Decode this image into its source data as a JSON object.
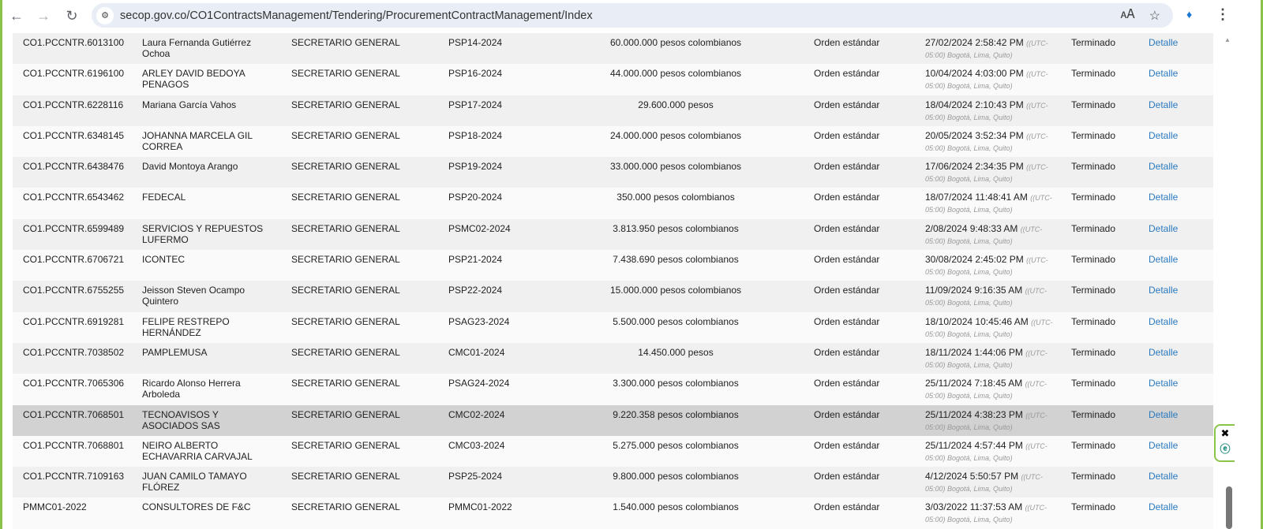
{
  "browser": {
    "url": "secop.gov.co/CO1ContractsManagement/Tendering/ProcurementContractManagement/Index"
  },
  "rows": [
    {
      "id": "CO1.PCCNTR.6013100",
      "name": "Laura Fernanda Gutiérrez Ochoa",
      "dept": "SECRETARIO GENERAL",
      "ref": "PSP14-2024",
      "value": "60.000.000 pesos colombianos",
      "type": "Orden estándar",
      "date": "27/02/2024 2:58:42 PM",
      "tz": "((UTC-05:00) Bogotá, Lima, Quito)",
      "status": "Terminado",
      "link": "Detalle"
    },
    {
      "id": "CO1.PCCNTR.6196100",
      "name": "ARLEY DAVID BEDOYA PENAGOS",
      "dept": "SECRETARIO GENERAL",
      "ref": "PSP16-2024",
      "value": "44.000.000 pesos colombianos",
      "type": "Orden estándar",
      "date": "10/04/2024 4:03:00 PM",
      "tz": "((UTC-05:00) Bogotá, Lima, Quito)",
      "status": "Terminado",
      "link": "Detalle"
    },
    {
      "id": "CO1.PCCNTR.6228116",
      "name": "Mariana García Vahos",
      "dept": "SECRETARIO GENERAL",
      "ref": "PSP17-2024",
      "value": "29.600.000 pesos",
      "type": "Orden estándar",
      "date": "18/04/2024 2:10:43 PM",
      "tz": "((UTC-05:00) Bogotá, Lima, Quito)",
      "status": "Terminado",
      "link": "Detalle"
    },
    {
      "id": "CO1.PCCNTR.6348145",
      "name": "JOHANNA MARCELA GIL CORREA",
      "dept": "SECRETARIO GENERAL",
      "ref": "PSP18-2024",
      "value": "24.000.000 pesos colombianos",
      "type": "Orden estándar",
      "date": "20/05/2024 3:52:34 PM",
      "tz": "((UTC-05:00) Bogotá, Lima, Quito)",
      "status": "Terminado",
      "link": "Detalle"
    },
    {
      "id": "CO1.PCCNTR.6438476",
      "name": "David Montoya Arango",
      "dept": "SECRETARIO GENERAL",
      "ref": "PSP19-2024",
      "value": "33.000.000 pesos colombianos",
      "type": "Orden estándar",
      "date": "17/06/2024 2:34:35 PM",
      "tz": "((UTC-05:00) Bogotá, Lima, Quito)",
      "status": "Terminado",
      "link": "Detalle"
    },
    {
      "id": "CO1.PCCNTR.6543462",
      "name": "FEDECAL",
      "dept": "SECRETARIO GENERAL",
      "ref": "PSP20-2024",
      "value": "350.000 pesos colombianos",
      "type": "Orden estándar",
      "date": "18/07/2024 11:48:41 AM",
      "tz": "((UTC-05:00) Bogotá, Lima, Quito)",
      "status": "Terminado",
      "link": "Detalle"
    },
    {
      "id": "CO1.PCCNTR.6599489",
      "name": "SERVICIOS Y REPUESTOS LUFERMO",
      "dept": "SECRETARIO GENERAL",
      "ref": "PSMC02-2024",
      "value": "3.813.950 pesos colombianos",
      "type": "Orden estándar",
      "date": "2/08/2024 9:48:33 AM",
      "tz": "((UTC-05:00) Bogotá, Lima, Quito)",
      "status": "Terminado",
      "link": "Detalle"
    },
    {
      "id": "CO1.PCCNTR.6706721",
      "name": "ICONTEC",
      "dept": "SECRETARIO GENERAL",
      "ref": "PSP21-2024",
      "value": "7.438.690 pesos colombianos",
      "type": "Orden estándar",
      "date": "30/08/2024 2:45:02 PM",
      "tz": "((UTC-05:00) Bogotá, Lima, Quito)",
      "status": "Terminado",
      "link": "Detalle"
    },
    {
      "id": "CO1.PCCNTR.6755255",
      "name": "Jeisson Steven Ocampo Quintero",
      "dept": "SECRETARIO GENERAL",
      "ref": "PSP22-2024",
      "value": "15.000.000 pesos colombianos",
      "type": "Orden estándar",
      "date": "11/09/2024 9:16:35 AM",
      "tz": "((UTC-05:00) Bogotá, Lima, Quito)",
      "status": "Terminado",
      "link": "Detalle"
    },
    {
      "id": "CO1.PCCNTR.6919281",
      "name": "FELIPE RESTREPO HERNÁNDEZ",
      "dept": "SECRETARIO GENERAL",
      "ref": "PSAG23-2024",
      "value": "5.500.000 pesos colombianos",
      "type": "Orden estándar",
      "date": "18/10/2024 10:45:46 AM",
      "tz": "((UTC-05:00) Bogotá, Lima, Quito)",
      "status": "Terminado",
      "link": "Detalle"
    },
    {
      "id": "CO1.PCCNTR.7038502",
      "name": "PAMPLEMUSA",
      "dept": "SECRETARIO GENERAL",
      "ref": "CMC01-2024",
      "value": "14.450.000 pesos",
      "type": "Orden estándar",
      "date": "18/11/2024 1:44:06 PM",
      "tz": "((UTC-05:00) Bogotá, Lima, Quito)",
      "status": "Terminado",
      "link": "Detalle"
    },
    {
      "id": "CO1.PCCNTR.7065306",
      "name": "Ricardo Alonso Herrera Arboleda",
      "dept": "SECRETARIO GENERAL",
      "ref": "PSAG24-2024",
      "value": "3.300.000 pesos colombianos",
      "type": "Orden estándar",
      "date": "25/11/2024 7:18:45 AM",
      "tz": "((UTC-05:00) Bogotá, Lima, Quito)",
      "status": "Terminado",
      "link": "Detalle"
    },
    {
      "id": "CO1.PCCNTR.7068501",
      "name": "TECNOAVISOS Y ASOCIADOS SAS",
      "dept": "SECRETARIO GENERAL",
      "ref": "CMC02-2024",
      "value": "9.220.358 pesos colombianos",
      "type": "Orden estándar",
      "date": "25/11/2024 4:38:23 PM",
      "tz": "((UTC-05:00) Bogotá, Lima, Quito)",
      "status": "Terminado",
      "link": "Detalle",
      "selected": true
    },
    {
      "id": "CO1.PCCNTR.7068801",
      "name": "NEIRO ALBERTO ECHAVARRIA CARVAJAL",
      "dept": "SECRETARIO GENERAL",
      "ref": "CMC03-2024",
      "value": "5.275.000 pesos colombianos",
      "type": "Orden estándar",
      "date": "25/11/2024 4:57:44 PM",
      "tz": "((UTC-05:00) Bogotá, Lima, Quito)",
      "status": "Terminado",
      "link": "Detalle"
    },
    {
      "id": "CO1.PCCNTR.7109163",
      "name": "JUAN CAMILO TAMAYO FLÓREZ",
      "dept": "SECRETARIO GENERAL",
      "ref": "PSP25-2024",
      "value": "9.800.000 pesos colombianos",
      "type": "Orden estándar",
      "date": "4/12/2024 5:50:57 PM",
      "tz": "((UTC-05:00) Bogotá, Lima, Quito)",
      "status": "Terminado",
      "link": "Detalle"
    },
    {
      "id": "PMMC01-2022",
      "name": "CONSULTORES DE F&C",
      "dept": "SECRETARIO GENERAL",
      "ref": "PMMC01-2022",
      "value": "1.540.000 pesos colombianos",
      "type": "Orden estándar",
      "date": "3/03/2022 11:37:53 AM",
      "tz": "((UTC-05:00) Bogotá, Lima, Quito)",
      "status": "Terminado",
      "link": "Detalle"
    }
  ],
  "colors": {
    "frame": "#8bc34a",
    "link": "#2a7ac0",
    "selected_row": "#d2d2d2"
  }
}
